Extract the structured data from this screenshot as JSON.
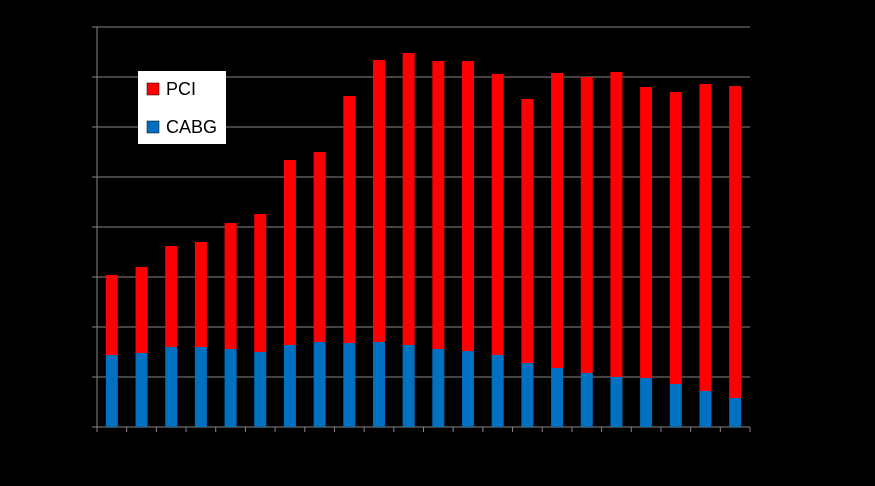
{
  "chart_data": {
    "type": "stacked-bar",
    "categories": [
      null,
      null,
      null,
      null,
      null,
      null,
      null,
      null,
      null,
      null,
      null,
      null,
      null,
      null,
      null,
      null,
      null,
      null,
      null,
      null,
      null,
      null
    ],
    "series": [
      {
        "name": "CABG",
        "color": "#0070c0",
        "values": [
          1.44,
          1.48,
          1.6,
          1.6,
          1.56,
          1.5,
          1.64,
          1.7,
          1.68,
          1.7,
          1.64,
          1.56,
          1.52,
          1.44,
          1.28,
          1.18,
          1.08,
          1.0,
          0.98,
          0.86,
          0.72,
          0.58
        ]
      },
      {
        "name": "PCI",
        "color": "#ff0000",
        "values": [
          1.6,
          1.72,
          2.02,
          2.1,
          2.52,
          2.76,
          3.7,
          3.8,
          4.94,
          5.64,
          5.84,
          5.76,
          5.8,
          5.62,
          5.28,
          5.9,
          5.92,
          6.1,
          5.82,
          5.84,
          6.14,
          6.24
        ]
      }
    ],
    "ylim": [
      0,
      8
    ],
    "yticks": [
      0,
      1,
      2,
      3,
      4,
      5,
      6,
      7,
      8
    ],
    "grid": true,
    "legend": "top-left"
  }
}
